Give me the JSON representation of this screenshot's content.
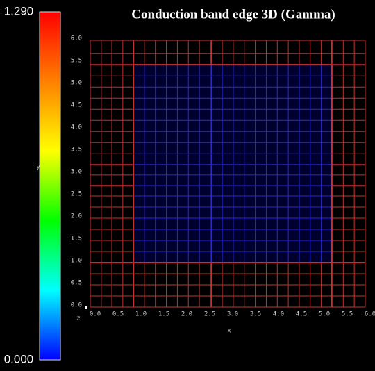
{
  "chart_data": {
    "type": "mesh",
    "title": "Conduction band edge 3D (Gamma)",
    "x_label": "x",
    "y_label": "y",
    "z_label": "z",
    "xlim": [
      0,
      6
    ],
    "ylim": [
      0,
      6
    ],
    "xticks": [
      {
        "value": 0,
        "label": "0.0"
      },
      {
        "value": 0.5,
        "label": "0.5"
      },
      {
        "value": 1,
        "label": "1.0"
      },
      {
        "value": 1.5,
        "label": "1.5"
      },
      {
        "value": 2,
        "label": "2.0"
      },
      {
        "value": 2.5,
        "label": "2.5"
      },
      {
        "value": 3,
        "label": "3.0"
      },
      {
        "value": 3.5,
        "label": "3.5"
      },
      {
        "value": 4,
        "label": "4.0"
      },
      {
        "value": 4.5,
        "label": "4.5"
      },
      {
        "value": 5,
        "label": "5.0"
      },
      {
        "value": 5.5,
        "label": "5.5"
      },
      {
        "value": 6,
        "label": "6.0"
      }
    ],
    "yticks": [
      {
        "value": 0,
        "label": "0.0"
      },
      {
        "value": 0.5,
        "label": "0.5"
      },
      {
        "value": 1,
        "label": "1.0"
      },
      {
        "value": 1.5,
        "label": "1.5"
      },
      {
        "value": 2,
        "label": "2.0"
      },
      {
        "value": 2.5,
        "label": "2.5"
      },
      {
        "value": 3,
        "label": "3.0"
      },
      {
        "value": 3.5,
        "label": "3.5"
      },
      {
        "value": 4,
        "label": "4.0"
      },
      {
        "value": 4.5,
        "label": "4.5"
      },
      {
        "value": 5,
        "label": "5.0"
      },
      {
        "value": 5.5,
        "label": "5.5"
      },
      {
        "value": 6,
        "label": "6.0"
      }
    ],
    "mesh_x": [
      0,
      0.24,
      0.47,
      0.71,
      0.94,
      1.18,
      1.42,
      1.66,
      1.9,
      2.14,
      2.38,
      2.64,
      2.88,
      3.12,
      3.36,
      3.6,
      3.84,
      4.08,
      4.32,
      4.56,
      4.8,
      5.04,
      5.27,
      5.52,
      5.76,
      6
    ],
    "mesh_y": [
      0,
      0.25,
      0.5,
      0.75,
      1,
      1.25,
      1.5,
      1.75,
      2,
      2.25,
      2.5,
      2.73,
      2.97,
      3.2,
      3.45,
      3.7,
      3.95,
      4.2,
      4.45,
      4.7,
      4.95,
      5.2,
      5.45,
      5.7,
      6
    ],
    "major_x": [
      0.94,
      2.64,
      5.27
    ],
    "major_y": [
      1,
      2.73,
      3.2,
      5.45
    ],
    "mesh_color": "#c83030",
    "region_line_color": "#2a2ad0",
    "regions": [
      {
        "x": [
          0.94,
          5.27
        ],
        "y": [
          1,
          5.45
        ],
        "value": 0,
        "color": "#00002e"
      }
    ],
    "colorbar": {
      "ticks": [
        {
          "value": 0,
          "label": "0.000"
        },
        {
          "value": 1.29,
          "label": "1.290"
        }
      ],
      "colormap": [
        "#0000ff",
        "#00ffff",
        "#00ff00",
        "#ffff00",
        "#ff8000",
        "#ff0000"
      ]
    }
  }
}
